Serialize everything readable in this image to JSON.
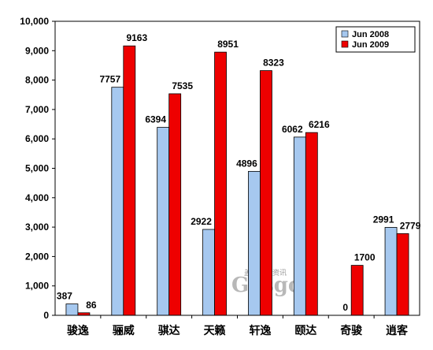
{
  "chart_data": {
    "type": "bar",
    "title": "",
    "xlabel": "",
    "ylabel": "",
    "ylim": [
      0,
      10000
    ],
    "y_ticks": [
      "0",
      "1,000",
      "2,000",
      "3,000",
      "4,000",
      "5,000",
      "6,000",
      "7,000",
      "8,000",
      "9,000",
      "10,000"
    ],
    "categories": [
      "骏逸",
      "骊威",
      "骐达",
      "天籁",
      "轩逸",
      "颐达",
      "奇骏",
      "逍客"
    ],
    "series": [
      {
        "name": "Jun 2008",
        "color": "#a6c8ef",
        "values": [
          387,
          7757,
          6394,
          2922,
          4896,
          6062,
          0,
          2991
        ]
      },
      {
        "name": "Jun 2009",
        "color": "#ee0000",
        "values": [
          86,
          9163,
          7535,
          8951,
          8323,
          6216,
          1700,
          2779
        ]
      }
    ],
    "grid": false,
    "legend_position": "top-right"
  },
  "watermark": {
    "cn": "盖世汽车资讯",
    "logo": "Gasgoo"
  }
}
